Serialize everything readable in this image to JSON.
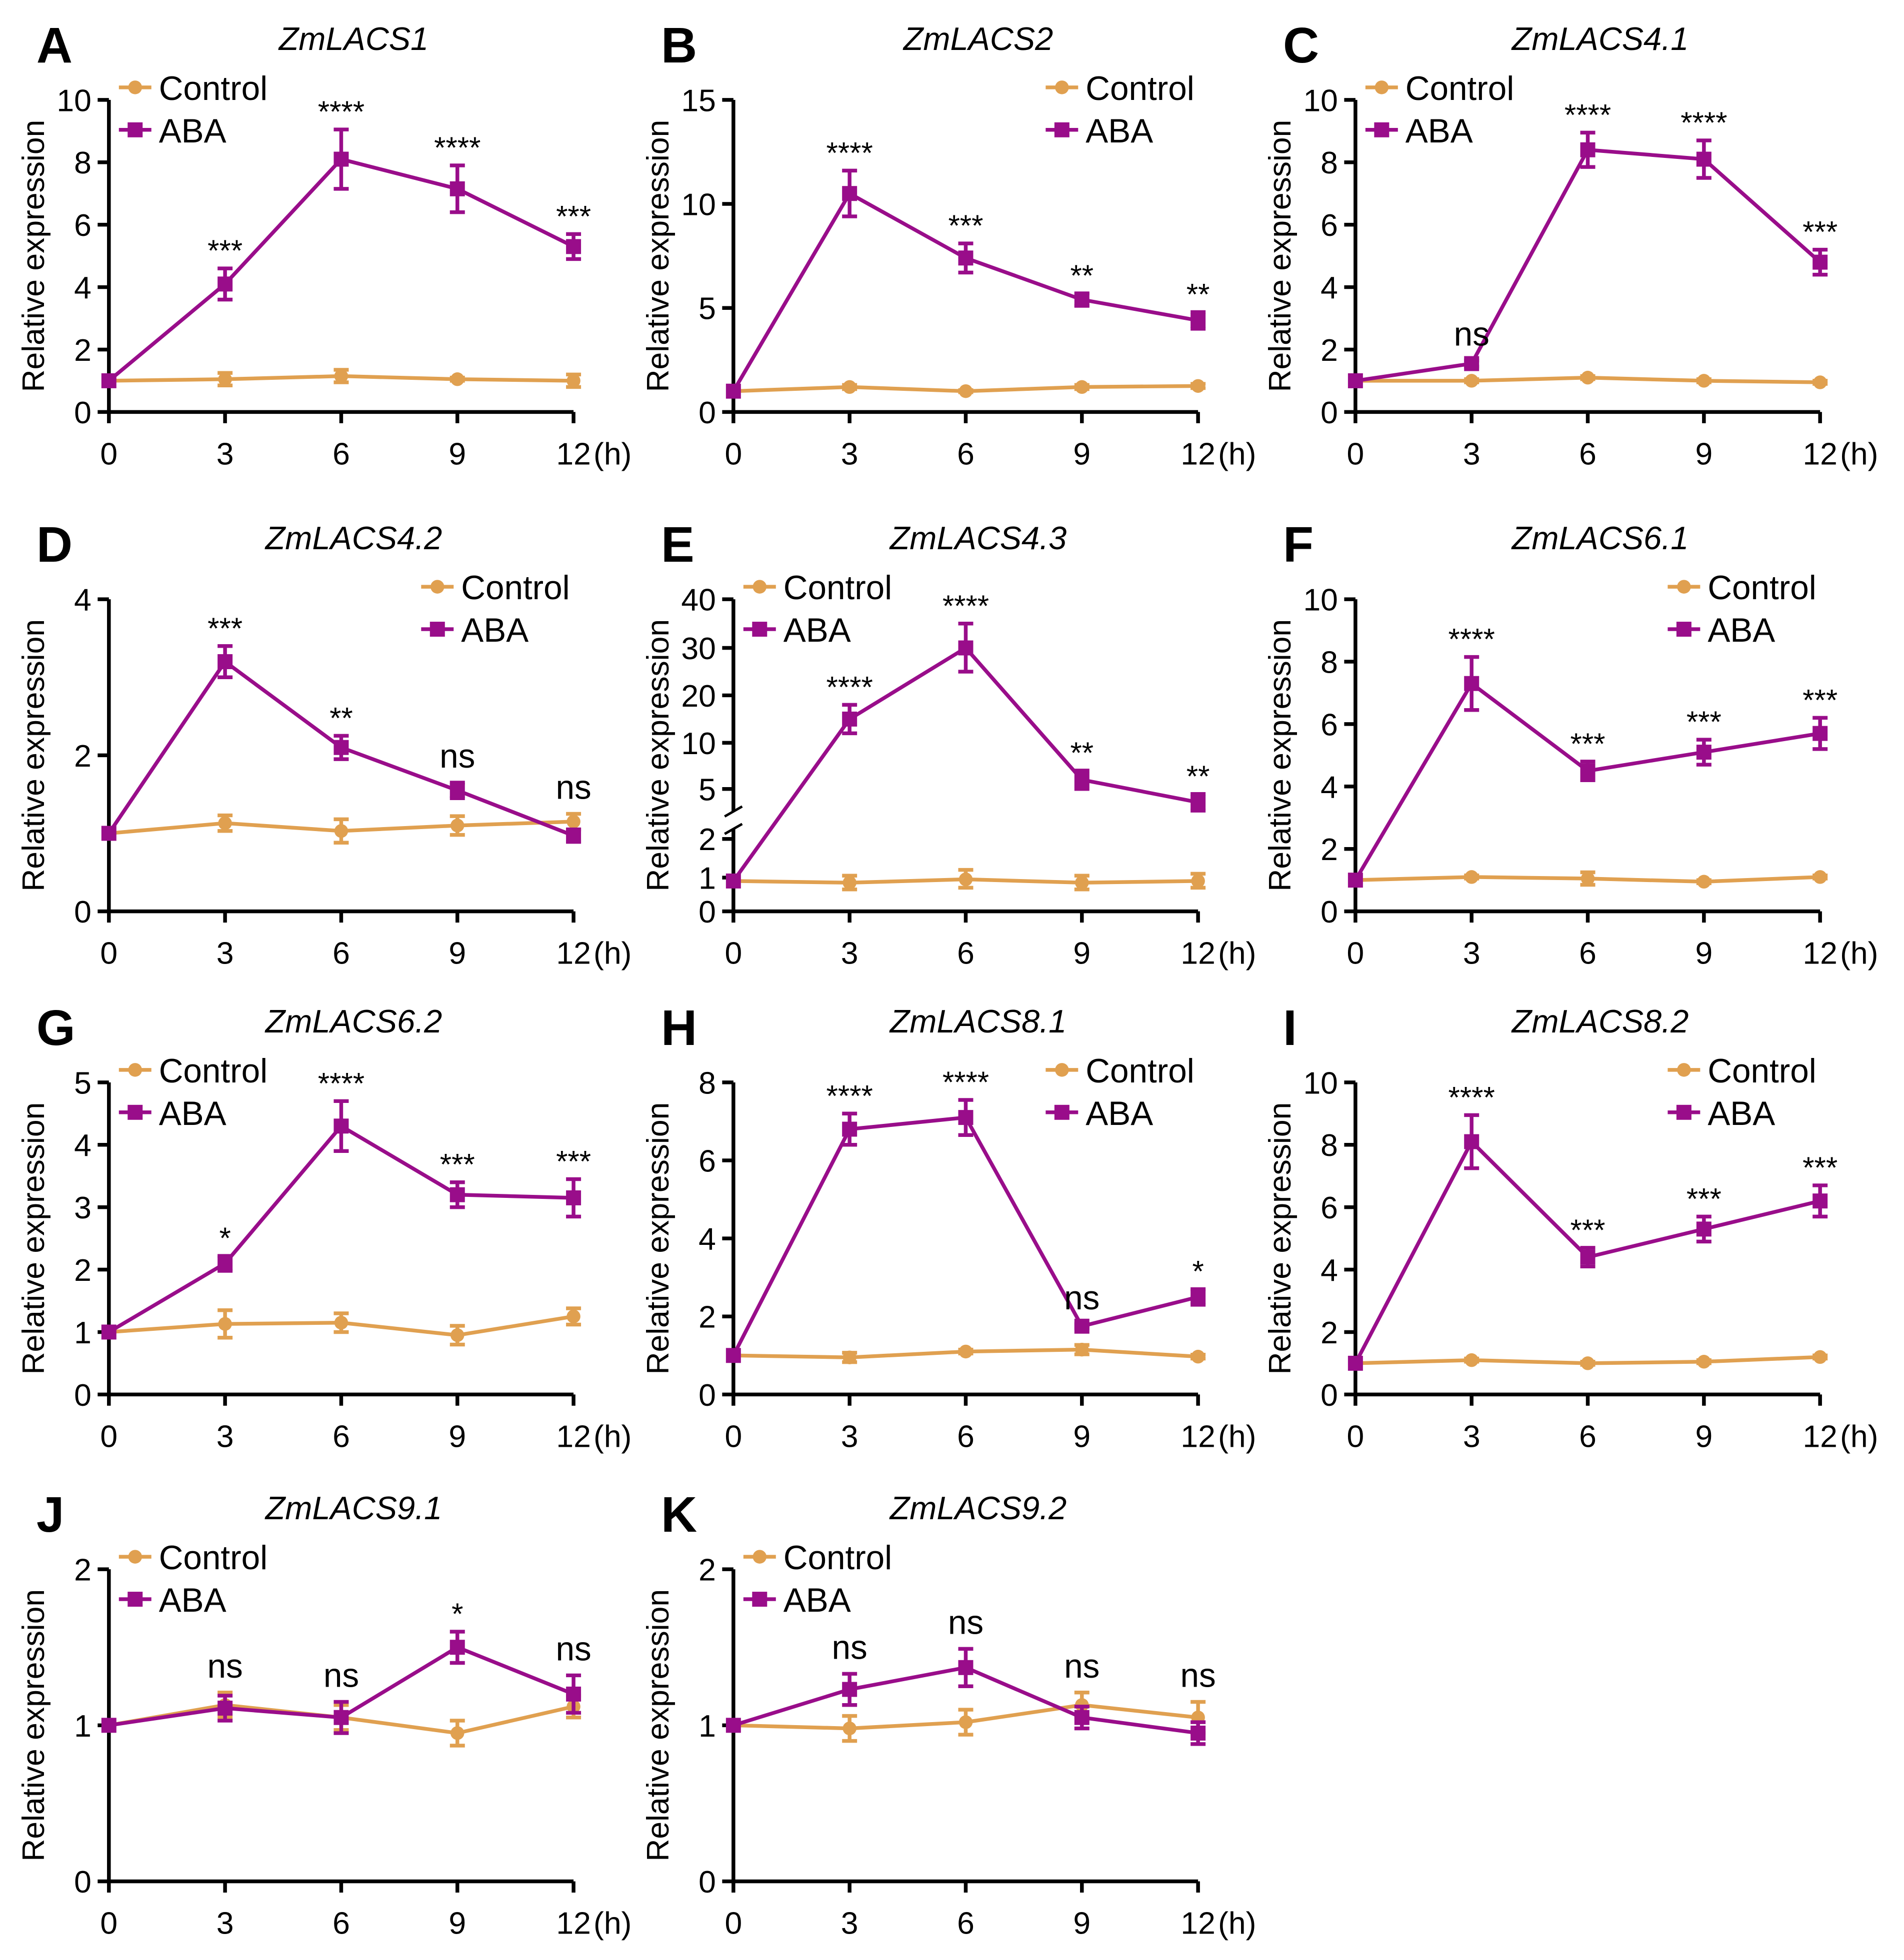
{
  "colors": {
    "control": "#E0A050",
    "aba": "#990D8A"
  },
  "chart_data": [
    {
      "type": "line",
      "panel": "A",
      "title": "ZmLACS1",
      "ylabel": "Relative expression",
      "x": [
        0,
        3,
        6,
        9,
        12
      ],
      "x_unit": "(h)",
      "ylim": [
        0,
        10
      ],
      "yticks": [
        0,
        2,
        4,
        6,
        8,
        10
      ],
      "legend": "top-left",
      "series": [
        {
          "name": "Control",
          "values": [
            1,
            1.05,
            1.15,
            1.05,
            1.0
          ],
          "errors": [
            0,
            0.2,
            0.2,
            0.05,
            0.2
          ]
        },
        {
          "name": "ABA",
          "values": [
            1,
            4.1,
            8.1,
            7.15,
            5.3
          ],
          "errors": [
            0,
            0.5,
            0.95,
            0.75,
            0.4
          ]
        }
      ],
      "significance": [
        "",
        "***",
        "****",
        "****",
        "***"
      ]
    },
    {
      "type": "line",
      "panel": "B",
      "title": "ZmLACS2",
      "ylabel": "Relative expression",
      "x": [
        0,
        3,
        6,
        9,
        12
      ],
      "x_unit": "(h)",
      "ylim": [
        0,
        15
      ],
      "yticks": [
        0,
        5,
        10,
        15
      ],
      "legend": "top-right",
      "series": [
        {
          "name": "Control",
          "values": [
            1,
            1.2,
            1.0,
            1.2,
            1.25
          ],
          "errors": [
            0,
            0.1,
            0.05,
            0.1,
            0.1
          ]
        },
        {
          "name": "ABA",
          "values": [
            1,
            10.5,
            7.4,
            5.4,
            4.4
          ],
          "errors": [
            0,
            1.1,
            0.7,
            0.3,
            0.4
          ]
        }
      ],
      "significance": [
        "",
        "****",
        "***",
        "**",
        "**"
      ]
    },
    {
      "type": "line",
      "panel": "C",
      "title": "ZmLACS4.1",
      "ylabel": "Relative expression",
      "x": [
        0,
        3,
        6,
        9,
        12
      ],
      "x_unit": "(h)",
      "ylim": [
        0,
        10
      ],
      "yticks": [
        0,
        2,
        4,
        6,
        8,
        10
      ],
      "legend": "top-left",
      "series": [
        {
          "name": "Control",
          "values": [
            1,
            1.0,
            1.1,
            1.0,
            0.95
          ],
          "errors": [
            0,
            0.05,
            0.05,
            0.05,
            0.05
          ]
        },
        {
          "name": "ABA",
          "values": [
            1,
            1.55,
            8.4,
            8.1,
            4.8
          ],
          "errors": [
            0,
            0.1,
            0.55,
            0.6,
            0.4
          ]
        }
      ],
      "significance": [
        "",
        "ns",
        "****",
        "****",
        "***"
      ]
    },
    {
      "type": "line",
      "panel": "D",
      "title": "ZmLACS4.2",
      "ylabel": "Relative expression",
      "x": [
        0,
        3,
        6,
        9,
        12
      ],
      "x_unit": "(h)",
      "ylim": [
        0,
        4
      ],
      "yticks": [
        0,
        2,
        4
      ],
      "legend": "top-right",
      "series": [
        {
          "name": "Control",
          "values": [
            1,
            1.13,
            1.03,
            1.1,
            1.15
          ],
          "errors": [
            0,
            0.1,
            0.15,
            0.12,
            0.1
          ]
        },
        {
          "name": "ABA",
          "values": [
            1,
            3.2,
            2.1,
            1.55,
            0.97
          ],
          "errors": [
            0,
            0.2,
            0.15,
            0.1,
            0.08
          ]
        }
      ],
      "significance": [
        "",
        "***",
        "**",
        "ns",
        "ns"
      ]
    },
    {
      "type": "line",
      "panel": "E",
      "title": "ZmLACS4.3",
      "ylabel": "Relative expression",
      "x": [
        0,
        3,
        6,
        9,
        12
      ],
      "x_unit": "(h)",
      "ylim": [
        0,
        40
      ],
      "yticks": [
        0,
        1,
        2,
        5,
        10,
        20,
        30,
        40
      ],
      "axis_break": [
        2,
        5
      ],
      "legend": "top-left",
      "series": [
        {
          "name": "Control",
          "values": [
            0.9,
            0.85,
            0.95,
            0.85,
            0.9
          ],
          "errors": [
            0,
            0.2,
            0.25,
            0.2,
            0.2
          ]
        },
        {
          "name": "ABA",
          "values": [
            0.9,
            15,
            30,
            6,
            4.2
          ],
          "errors": [
            0,
            3,
            5,
            1,
            0.5
          ]
        }
      ],
      "significance": [
        "",
        "****",
        "****",
        "**",
        "**"
      ]
    },
    {
      "type": "line",
      "panel": "F",
      "title": "ZmLACS6.1",
      "ylabel": "Relative expression",
      "x": [
        0,
        3,
        6,
        9,
        12
      ],
      "x_unit": "(h)",
      "ylim": [
        0,
        10
      ],
      "yticks": [
        0,
        2,
        4,
        6,
        8,
        10
      ],
      "legend": "top-right",
      "series": [
        {
          "name": "Control",
          "values": [
            1,
            1.1,
            1.05,
            0.95,
            1.1
          ],
          "errors": [
            0,
            0.05,
            0.2,
            0.05,
            0.05
          ]
        },
        {
          "name": "ABA",
          "values": [
            1,
            7.3,
            4.5,
            5.1,
            5.7
          ],
          "errors": [
            0,
            0.85,
            0.3,
            0.4,
            0.5
          ]
        }
      ],
      "significance": [
        "",
        "****",
        "***",
        "***",
        "***"
      ]
    },
    {
      "type": "line",
      "panel": "G",
      "title": "ZmLACS6.2",
      "ylabel": "Relative expression",
      "x": [
        0,
        3,
        6,
        9,
        12
      ],
      "x_unit": "(h)",
      "ylim": [
        0,
        5
      ],
      "yticks": [
        0,
        1,
        2,
        3,
        4,
        5
      ],
      "legend": "top-left",
      "series": [
        {
          "name": "Control",
          "values": [
            1,
            1.13,
            1.15,
            0.95,
            1.25
          ],
          "errors": [
            0,
            0.22,
            0.15,
            0.15,
            0.13
          ]
        },
        {
          "name": "ABA",
          "values": [
            1,
            2.1,
            4.3,
            3.2,
            3.15
          ],
          "errors": [
            0,
            0.12,
            0.4,
            0.2,
            0.3
          ]
        }
      ],
      "significance": [
        "",
        "*",
        "****",
        "***",
        "***"
      ]
    },
    {
      "type": "line",
      "panel": "H",
      "title": "ZmLACS8.1",
      "ylabel": "Relative expression",
      "x": [
        0,
        3,
        6,
        9,
        12
      ],
      "x_unit": "(h)",
      "ylim": [
        0,
        8
      ],
      "yticks": [
        0,
        2,
        4,
        6,
        8
      ],
      "legend": "top-right",
      "series": [
        {
          "name": "Control",
          "values": [
            1,
            0.95,
            1.1,
            1.15,
            0.97
          ],
          "errors": [
            0,
            0.12,
            0.05,
            0.12,
            0.05
          ]
        },
        {
          "name": "ABA",
          "values": [
            1,
            6.8,
            7.1,
            1.75,
            2.5
          ],
          "errors": [
            0,
            0.4,
            0.45,
            0.05,
            0.2
          ]
        }
      ],
      "significance": [
        "",
        "****",
        "****",
        "ns",
        "*"
      ]
    },
    {
      "type": "line",
      "panel": "I",
      "title": "ZmLACS8.2",
      "ylabel": "Relative expression",
      "x": [
        0,
        3,
        6,
        9,
        12
      ],
      "x_unit": "(h)",
      "ylim": [
        0,
        10
      ],
      "yticks": [
        0,
        2,
        4,
        6,
        8,
        10
      ],
      "legend": "top-right",
      "series": [
        {
          "name": "Control",
          "values": [
            1,
            1.1,
            1.0,
            1.05,
            1.2
          ],
          "errors": [
            0,
            0.05,
            0.05,
            0.05,
            0.05
          ]
        },
        {
          "name": "ABA",
          "values": [
            1,
            8.1,
            4.4,
            5.3,
            6.2
          ],
          "errors": [
            0,
            0.85,
            0.3,
            0.4,
            0.5
          ]
        }
      ],
      "significance": [
        "",
        "****",
        "***",
        "***",
        "***"
      ]
    },
    {
      "type": "line",
      "panel": "J",
      "title": "ZmLACS9.1",
      "ylabel": "Relative expression",
      "x": [
        0,
        3,
        6,
        9,
        12
      ],
      "x_unit": "(h)",
      "ylim": [
        0,
        2
      ],
      "yticks": [
        0,
        1,
        2
      ],
      "legend": "top-left",
      "series": [
        {
          "name": "Control",
          "values": [
            1,
            1.13,
            1.05,
            0.95,
            1.12
          ],
          "errors": [
            0,
            0.08,
            0.08,
            0.08,
            0.07
          ]
        },
        {
          "name": "ABA",
          "values": [
            1,
            1.11,
            1.05,
            1.5,
            1.2
          ],
          "errors": [
            0,
            0.08,
            0.1,
            0.1,
            0.12
          ]
        }
      ],
      "significance": [
        "",
        "ns",
        "ns",
        "*",
        "ns"
      ]
    },
    {
      "type": "line",
      "panel": "K",
      "title": "ZmLACS9.2",
      "ylabel": "Relative expression",
      "x": [
        0,
        3,
        6,
        9,
        12
      ],
      "x_unit": "(h)",
      "ylim": [
        0,
        2
      ],
      "yticks": [
        0,
        1,
        2
      ],
      "legend": "top-left",
      "series": [
        {
          "name": "Control",
          "values": [
            1,
            0.98,
            1.02,
            1.13,
            1.05
          ],
          "errors": [
            0,
            0.08,
            0.08,
            0.08,
            0.1
          ]
        },
        {
          "name": "ABA",
          "values": [
            1,
            1.23,
            1.37,
            1.05,
            0.95
          ],
          "errors": [
            0,
            0.1,
            0.12,
            0.07,
            0.07
          ]
        }
      ],
      "significance": [
        "",
        "ns",
        "ns",
        "ns",
        "ns"
      ]
    }
  ]
}
